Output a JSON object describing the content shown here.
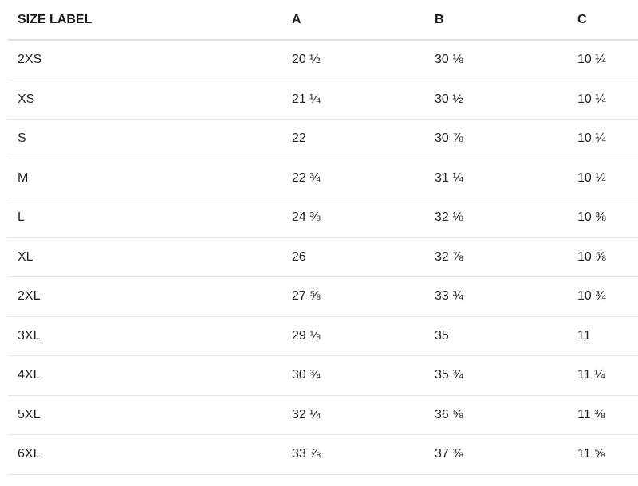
{
  "table": {
    "header": [
      "SIZE LABEL",
      "A",
      "B",
      "C"
    ],
    "rows": [
      [
        "2XS",
        "20 ½",
        "30 ⅛",
        "10 ¼"
      ],
      [
        "XS",
        "21 ¼",
        "30 ½",
        "10 ¼"
      ],
      [
        "S",
        "22",
        "30 ⅞",
        "10 ¼"
      ],
      [
        "M",
        "22 ¾",
        "31 ¼",
        "10 ¼"
      ],
      [
        "L",
        "24 ⅜",
        "32 ⅛",
        "10 ⅜"
      ],
      [
        "XL",
        "26",
        "32 ⅞",
        "10 ⅝"
      ],
      [
        "2XL",
        "27 ⅝",
        "33 ¾",
        "10 ¾"
      ],
      [
        "3XL",
        "29 ⅛",
        "35",
        "11"
      ],
      [
        "4XL",
        "30 ¾",
        "35 ¾",
        "11 ¼"
      ],
      [
        "5XL",
        "32 ¼",
        "36 ⅝",
        "11 ⅜"
      ],
      [
        "6XL",
        "33 ⅞",
        "37 ⅜",
        "11 ⅝"
      ]
    ]
  }
}
